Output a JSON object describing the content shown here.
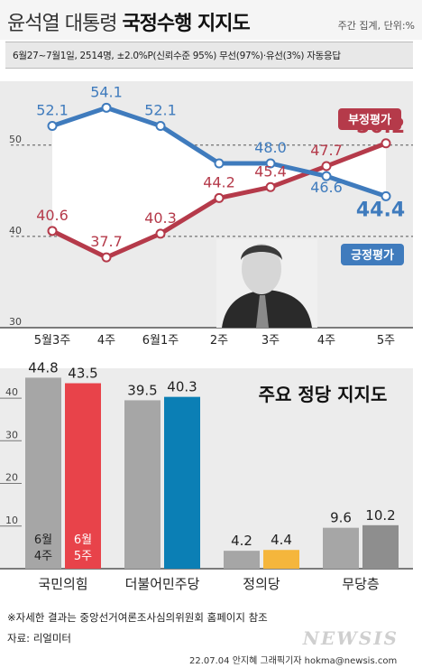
{
  "header": {
    "title_part1": "윤석열 대통령",
    "title_part2": "국정수행 지지도",
    "note": "주간 집계, 단위:%",
    "subtitle": "6월27~7월1일, 2514명, ±2.0%P(신뢰수준 95%) 무선(97%)·유선(3%) 자동응답"
  },
  "chart_data": [
    {
      "type": "line",
      "categories": [
        "5월3주",
        "4주",
        "6월1주",
        "2주",
        "3주",
        "4주",
        "5주"
      ],
      "ylim": [
        30,
        57
      ],
      "yticks": [
        30,
        40,
        50
      ],
      "series": [
        {
          "name": "부정평가",
          "values": [
            40.6,
            37.7,
            40.3,
            44.2,
            45.4,
            47.7,
            50.2
          ],
          "color": "#b53a4a"
        },
        {
          "name": "긍정평가",
          "values": [
            52.1,
            54.1,
            52.1,
            48.0,
            48.0,
            46.6,
            44.4
          ],
          "color": "#3f7bbd"
        }
      ],
      "labels": {
        "positive": [
          "52.1",
          "54.1",
          "52.1",
          "",
          "48.0",
          "46.6",
          "44.4"
        ],
        "negative": [
          "40.6",
          "37.7",
          "40.3",
          "44.2",
          "45.4",
          "47.7",
          "50.2"
        ]
      }
    },
    {
      "type": "bar",
      "title": "주요 정당 지지도",
      "categories": [
        "국민의힘",
        "더불어민주당",
        "정의당",
        "무당층"
      ],
      "ylim": [
        0,
        47
      ],
      "yticks": [
        10,
        20,
        30,
        40
      ],
      "series": [
        {
          "name": "6월 4주",
          "values": [
            44.8,
            39.5,
            4.2,
            9.6
          ],
          "color": "#a6a6a6"
        },
        {
          "name": "6월 5주",
          "values": [
            43.5,
            40.3,
            4.4,
            10.2
          ],
          "colors": [
            "#e8434a",
            "#0b7fb5",
            "#f5b63c",
            "#8e8e8e"
          ]
        }
      ]
    }
  ],
  "footer": {
    "footnote": "※자세한 결과는 중앙선거여론조사심의위원회 홈페이지 참조",
    "source": "자료: 리얼미터",
    "credit": "22.07.04 안지혜 그래픽기자 hokma@newsis.com",
    "logo": "NEWSIS"
  }
}
